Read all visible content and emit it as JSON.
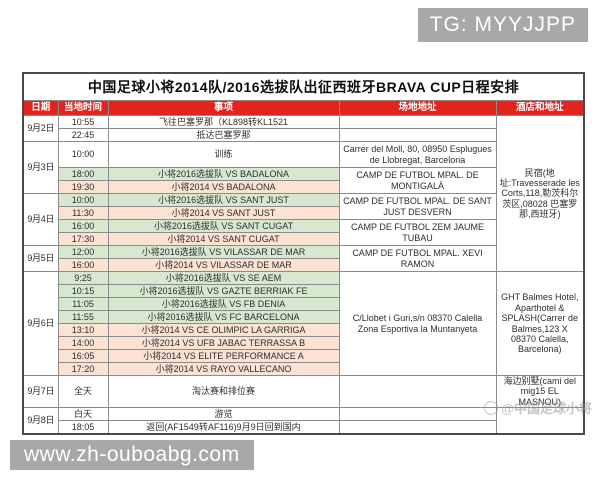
{
  "watermarks": {
    "tg": "TG: MYYJJPP",
    "site": "www.zh-ouboabg.com",
    "logo": "@中国足球小将"
  },
  "colors": {
    "header_bg": "#e2241f",
    "green": "#d7e8d0",
    "peach": "#fbe2d3",
    "white": "#ffffff",
    "watermark_bg": "#a8a8a8"
  },
  "table": {
    "title": "中国足球小将2014队/2016选拔队出征西班牙BRAVA CUP日程安排",
    "columns": [
      "日期",
      "当地时间",
      "事项",
      "场地地址",
      "酒店和地址"
    ],
    "rows": [
      {
        "time": "10:55",
        "event": "飞往巴塞罗那（KL898转KL1521",
        "bg": "white",
        "date": {
          "label": "9月2日",
          "span": 2
        },
        "venue": {
          "text": "",
          "span": 1
        },
        "hotel": {
          "text": "民宿(地址:Travesserade les Corts,118,勒茨科尔茨区,08028 巴塞罗那,西班牙)",
          "span": 11
        }
      },
      {
        "time": "22:45",
        "event": "抵达巴塞罗那",
        "bg": "white",
        "venue": {
          "text": "",
          "span": 1
        }
      },
      {
        "time": "10:00",
        "event": "训练",
        "bg": "white",
        "h": 26,
        "date": {
          "label": "9月3日",
          "span": 3
        },
        "venue": {
          "text": "Carrer del Moll, 80, 08950 Esplugues de Llobregat, Barcelona",
          "span": 1
        }
      },
      {
        "time": "18:00",
        "event": "小将2016选拔队 VS BADALONA",
        "bg": "green",
        "venue": {
          "text": "CAMP DE FUTBOL MPAL. DE MONTIGALÀ",
          "span": 2
        }
      },
      {
        "time": "19:30",
        "event": "小将2014 VS BADALONA",
        "bg": "peach"
      },
      {
        "time": "10:00",
        "event": "小将2016选拔队 VS SANT JUST",
        "bg": "green",
        "date": {
          "label": "9月4日",
          "span": 4
        },
        "venue": {
          "text": "CAMP DE FUTBOL MPAL. DE SANT JUST DESVERN",
          "span": 2
        }
      },
      {
        "time": "11:30",
        "event": "小将2014 VS SANT JUST",
        "bg": "peach"
      },
      {
        "time": "16:00",
        "event": "小将2016选拔队 VS SANT CUGAT",
        "bg": "green",
        "venue": {
          "text": "CAMP DE FUTBOL ZEM JAUME TUBAU",
          "span": 2
        }
      },
      {
        "time": "17:30",
        "event": "小将2014 VS SANT CUGAT",
        "bg": "peach"
      },
      {
        "time": "12:00",
        "event": "小将2016选拔队 VS VILASSAR DE MAR",
        "bg": "green",
        "date": {
          "label": "9月5日",
          "span": 2
        },
        "venue": {
          "text": "CAMP DE FUTBOL MPAL. XEVI RAMON",
          "span": 2
        }
      },
      {
        "time": "16:00",
        "event": "小将2014 VS VILASSAR DE MAR",
        "bg": "peach"
      },
      {
        "time": "9:25",
        "event": "小将2016选拔队 VS SE AEM",
        "bg": "green",
        "date": {
          "label": "9月6日",
          "span": 8
        },
        "venue": {
          "text": "C/Llobet i Guri,s/n 08370 Calella Zona Esportiva la Muntanyeta",
          "span": 8
        },
        "hotel": {
          "text": "GHT Balmes Hotel, Aparthotel & SPLASH(Carrer de Balmes,123 X 08370 Calella, Barcelona)",
          "span": 8
        }
      },
      {
        "time": "10:15",
        "event": "小将2016选拔队 VS GAZTE BERRIAK FE",
        "bg": "green"
      },
      {
        "time": "11:05",
        "event": "小将2016选拔队 VS FB DENIA",
        "bg": "green"
      },
      {
        "time": "11:55",
        "event": "小将2016选拔队 VS FC BARCELONA",
        "bg": "green"
      },
      {
        "time": "13:10",
        "event": "小将2014 VS CE OLIMPIC LA GARRIGA",
        "bg": "peach"
      },
      {
        "time": "14:00",
        "event": "小将2014 VS UFB JABAC TERRASSA B",
        "bg": "peach"
      },
      {
        "time": "16:05",
        "event": "小将2014 VS ELITE PERFORMANCE A",
        "bg": "peach"
      },
      {
        "time": "17:20",
        "event": "小将2014 VS RAYO VALLECANO",
        "bg": "peach"
      },
      {
        "time": "全天",
        "event": "淘汰赛和排位赛",
        "bg": "white",
        "h": 25,
        "date": {
          "label": "9月7日",
          "span": 1
        },
        "venue": {
          "text": "",
          "span": 1
        },
        "hotel": {
          "text": "海边别墅(cami del mig15 EL MASNOU)",
          "span": 1
        }
      },
      {
        "time": "白天",
        "event": "游览",
        "bg": "white",
        "date": {
          "label": "9月8日",
          "span": 2
        },
        "venue": {
          "text": "",
          "span": 1
        },
        "hotel": {
          "text": "",
          "span": 2
        }
      },
      {
        "time": "18:05",
        "event": "返回(AF1549转AF116)9月9日回到国内",
        "bg": "white",
        "venue": {
          "text": "",
          "span": 1
        }
      }
    ]
  }
}
